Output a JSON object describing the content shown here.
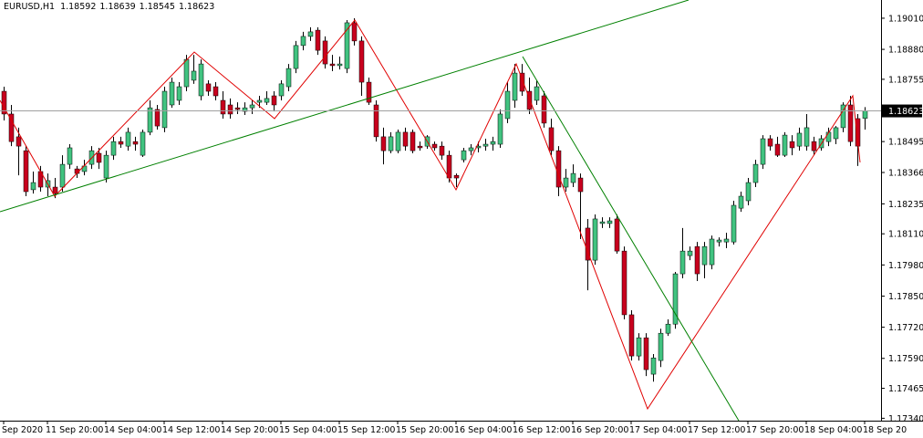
{
  "chart_data": {
    "type": "candlestick",
    "title": "EURUSD,H1",
    "categories": [
      "Sep 2020",
      null,
      null,
      null,
      null,
      null,
      "11 Sep 20:00",
      null,
      null,
      null,
      null,
      null,
      null,
      null,
      "14 Sep 04:00",
      null,
      null,
      null,
      null,
      null,
      null,
      null,
      "14 Sep 12:00",
      null,
      null,
      null,
      null,
      null,
      null,
      null,
      "14 Sep 20:00",
      null,
      null,
      null,
      null,
      null,
      null,
      null,
      "15 Sep 04:00",
      null,
      null,
      null,
      null,
      null,
      null,
      null,
      "15 Sep 12:00",
      null,
      null,
      null,
      null,
      null,
      null,
      null,
      "15 Sep 20:00",
      null,
      null,
      null,
      null,
      null,
      null,
      null,
      "16 Sep 04:00",
      null,
      null,
      null,
      null,
      null,
      null,
      null,
      "16 Sep 12:00",
      null,
      null,
      null,
      null,
      null,
      null,
      null,
      "16 Sep 20:00",
      null,
      null,
      null,
      null,
      null,
      null,
      null,
      "17 Sep 04:00",
      null,
      null,
      null,
      null,
      null,
      null,
      null,
      "17 Sep 12:00",
      null,
      null,
      null,
      null,
      null,
      null,
      null,
      "17 Sep 20:00",
      null,
      null,
      null,
      null,
      null,
      null,
      null,
      "18 Sep 04:00",
      null,
      null,
      null,
      null,
      null,
      null,
      null,
      "18 Sep 20"
    ],
    "open": [
      1.18705,
      1.1861,
      1.18515,
      1.18457,
      1.18294,
      1.1837,
      1.18305,
      1.18305,
      1.18305,
      1.184,
      1.18381,
      1.1837,
      1.184,
      1.18446,
      1.18343,
      1.18438,
      1.18495,
      1.18476,
      1.18495,
      1.18438,
      1.18534,
      1.18629,
      1.18553,
      1.18648,
      1.18667,
      1.18724,
      1.18751,
      1.18686,
      1.18736,
      1.18724,
      1.18667,
      1.18648,
      1.18636,
      1.18621,
      1.18636,
      1.18659,
      1.18659,
      1.18686,
      1.18686,
      1.18724,
      1.188,
      1.18896,
      1.18934,
      1.1896,
      1.18915,
      1.18819,
      1.18812,
      1.188,
      1.18991,
      1.18915,
      1.18743,
      1.18648,
      1.18515,
      1.18457,
      1.18457,
      1.18534,
      1.18534,
      1.18476,
      1.18476,
      1.18484,
      1.18476,
      1.18438,
      1.18354,
      1.18419,
      1.18457,
      1.18469,
      1.18476,
      1.18484,
      1.18484,
      1.18591,
      1.18667,
      1.18781,
      1.18705,
      1.18667,
      1.18686,
      1.18553,
      1.18457,
      1.18305,
      1.18324,
      1.18343,
      1.18134,
      1.18,
      1.18153,
      1.18153,
      1.18172,
      1.18038,
      1.17772,
      1.176,
      1.17676,
      1.17524,
      1.17581,
      1.17695,
      1.17733,
      1.17943,
      1.18019,
      1.18057,
      1.17981,
      1.17981,
      1.18076,
      1.18076,
      1.18076,
      1.18217,
      1.18248,
      1.18324,
      1.184,
      1.18507,
      1.18484,
      1.18438,
      1.18495,
      1.18476,
      1.18476,
      1.18495,
      1.18469,
      1.18495,
      1.18507,
      1.18553,
      1.18648,
      1.18591,
      1.18592
    ],
    "high": [
      1.18724,
      1.18648,
      1.18553,
      1.18476,
      1.1837,
      1.18393,
      1.18362,
      1.18343,
      1.18438,
      1.18484,
      1.18393,
      1.18419,
      1.18476,
      1.18469,
      1.18457,
      1.18515,
      1.18515,
      1.18553,
      1.18515,
      1.18545,
      1.18667,
      1.18648,
      1.18724,
      1.18762,
      1.18743,
      1.18857,
      1.18857,
      1.18838,
      1.18751,
      1.18743,
      1.18705,
      1.18675,
      1.18659,
      1.18659,
      1.18667,
      1.18686,
      1.18705,
      1.18705,
      1.18751,
      1.18819,
      1.18915,
      1.18953,
      1.18972,
      1.18972,
      1.18934,
      1.18857,
      1.1885,
      1.19002,
      1.1901,
      1.18934,
      1.18762,
      1.18667,
      1.18553,
      1.18534,
      1.18545,
      1.18553,
      1.18545,
      1.18495,
      1.18522,
      1.18495,
      1.18495,
      1.18457,
      1.18362,
      1.18469,
      1.18484,
      1.18495,
      1.18507,
      1.18515,
      1.18629,
      1.18743,
      1.18819,
      1.18819,
      1.18762,
      1.18751,
      1.18705,
      1.18591,
      1.18476,
      1.18381,
      1.184,
      1.18362,
      1.18172,
      1.18191,
      1.18179,
      1.18179,
      1.18191,
      1.18057,
      1.17791,
      1.17695,
      1.17695,
      1.17608,
      1.17714,
      1.17753,
      1.17951,
      1.18134,
      1.18057,
      1.18076,
      1.18076,
      1.18103,
      1.18095,
      1.18114,
      1.18248,
      1.18286,
      1.18343,
      1.18419,
      1.18522,
      1.18522,
      1.18515,
      1.18534,
      1.18522,
      1.18553,
      1.1861,
      1.18515,
      1.18522,
      1.18553,
      1.1856,
      1.18659,
      1.18686,
      1.1861,
      1.18639
    ],
    "low": [
      1.18583,
      1.18476,
      1.18354,
      1.18267,
      1.18278,
      1.18286,
      1.18267,
      1.18259,
      1.18286,
      1.18381,
      1.18343,
      1.18354,
      1.18381,
      1.18381,
      1.18324,
      1.18419,
      1.18469,
      1.18457,
      1.18457,
      1.18431,
      1.18522,
      1.18545,
      1.18534,
      1.18636,
      1.18648,
      1.18705,
      1.18736,
      1.18667,
      1.18686,
      1.18667,
      1.18591,
      1.18591,
      1.1861,
      1.18606,
      1.1861,
      1.18636,
      1.18648,
      1.18621,
      1.18667,
      1.18705,
      1.18781,
      1.18876,
      1.18915,
      1.18857,
      1.188,
      1.18789,
      1.18796,
      1.18781,
      1.18896,
      1.18686,
      1.18648,
      1.18495,
      1.184,
      1.18446,
      1.18446,
      1.18457,
      1.18446,
      1.18457,
      1.18465,
      1.18457,
      1.18419,
      1.18324,
      1.18305,
      1.18408,
      1.18438,
      1.1845,
      1.18457,
      1.18457,
      1.18469,
      1.18572,
      1.18636,
      1.18686,
      1.1861,
      1.18648,
      1.18553,
      1.18438,
      1.18267,
      1.18286,
      1.18305,
      1.18088,
      1.17874,
      1.17981,
      1.18134,
      1.18134,
      1.18027,
      1.17753,
      1.17581,
      1.17581,
      1.17516,
      1.17493,
      1.17554,
      1.17684,
      1.17714,
      1.17924,
      1.18,
      1.17913,
      1.17924,
      1.17962,
      1.18057,
      1.1805,
      1.18065,
      1.18202,
      1.18229,
      1.18305,
      1.18381,
      1.18457,
      1.18431,
      1.18431,
      1.18438,
      1.18457,
      1.18457,
      1.18438,
      1.18457,
      1.18476,
      1.18484,
      1.18534,
      1.18476,
      1.18393,
      1.18545
    ],
    "close": [
      1.1861,
      1.18495,
      1.18476,
      1.18286,
      1.18324,
      1.18305,
      1.18332,
      1.18278,
      1.184,
      1.18469,
      1.18362,
      1.18393,
      1.18457,
      1.18408,
      1.18438,
      1.18495,
      1.18484,
      1.18534,
      1.18484,
      1.18534,
      1.18636,
      1.1856,
      1.18705,
      1.18743,
      1.18724,
      1.18838,
      1.18789,
      1.18819,
      1.18705,
      1.18686,
      1.1861,
      1.1861,
      1.18629,
      1.18636,
      1.18648,
      1.18667,
      1.18675,
      1.18648,
      1.18736,
      1.188,
      1.18896,
      1.18934,
      1.18953,
      1.18876,
      1.18819,
      1.18812,
      1.18819,
      1.18991,
      1.18915,
      1.18743,
      1.18659,
      1.18515,
      1.18457,
      1.18515,
      1.18534,
      1.18476,
      1.18457,
      1.18469,
      1.18515,
      1.18469,
      1.18438,
      1.18343,
      1.18343,
      1.18457,
      1.18469,
      1.18476,
      1.18484,
      1.18495,
      1.1861,
      1.18705,
      1.18781,
      1.18705,
      1.18629,
      1.18724,
      1.18572,
      1.18457,
      1.18305,
      1.18343,
      1.18362,
      1.18286,
      1.18,
      1.18172,
      1.1816,
      1.18164,
      1.18038,
      1.17772,
      1.176,
      1.17676,
      1.17543,
      1.17592,
      1.17695,
      1.17733,
      1.17943,
      1.18038,
      1.18038,
      1.17943,
      1.18057,
      1.18088,
      1.18084,
      1.18088,
      1.18229,
      1.18267,
      1.18324,
      1.184,
      1.18507,
      1.18476,
      1.18438,
      1.18522,
      1.18469,
      1.1853,
      1.18553,
      1.18457,
      1.18507,
      1.18534,
      1.18553,
      1.18648,
      1.18495,
      1.18476,
      1.18623
    ],
    "up_color": "#41c380",
    "down_color": "#c8001e",
    "ylim": [
      1.1733,
      1.19086
    ],
    "yticks": [
      {
        "value": 1.1901,
        "label": "1.19010"
      },
      {
        "value": 1.1888,
        "label": "1.18880"
      },
      1.18755,
      1.18495,
      1.18366,
      1.18235,
      {
        "value": 1.1811,
        "label": "1.18110"
      },
      {
        "value": 1.1798,
        "label": "1.17980"
      },
      {
        "value": 1.1785,
        "label": "1.17850"
      },
      {
        "value": 1.1772,
        "label": "1.17720"
      },
      {
        "value": 1.1759,
        "label": "1.17590"
      },
      1.17465,
      {
        "value": 1.1734,
        "label": "1.17340"
      }
    ],
    "grid": false
  }
}
